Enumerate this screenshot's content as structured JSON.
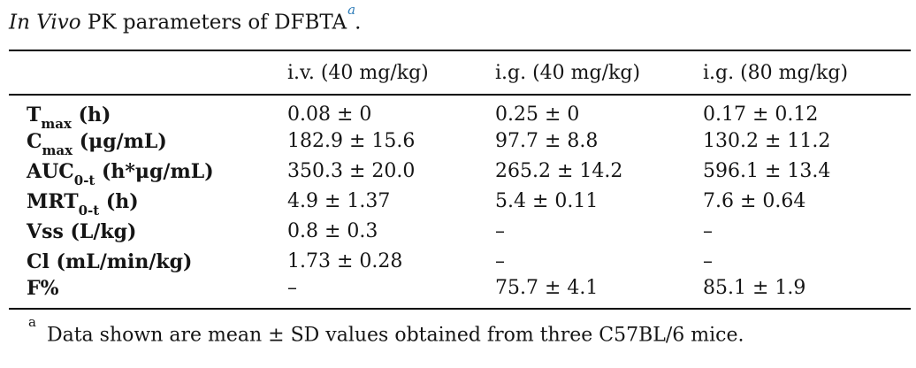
{
  "accent_color": "#2e7cb8",
  "title": {
    "italic_part": "In Vivo",
    "rest": " PK parameters of DFBTA",
    "superscript": "a",
    "period": "."
  },
  "table": {
    "columns": [
      "i.v. (40 mg/kg)",
      "i.g. (40 mg/kg)",
      "i.g. (80 mg/kg)"
    ],
    "rows": [
      {
        "label": {
          "main": "T",
          "sub": "max",
          "unit": " (h)"
        },
        "values": [
          "0.08 ± 0",
          "0.25 ± 0",
          "0.17 ± 0.12"
        ]
      },
      {
        "label": {
          "main": "C",
          "sub": "max",
          "unit": " (μg/mL)"
        },
        "values": [
          "182.9 ± 15.6",
          "97.7 ± 8.8",
          "130.2 ± 11.2"
        ]
      },
      {
        "label": {
          "main": "AUC",
          "sub": "0-t",
          "unit": " (h*μg/mL)"
        },
        "values": [
          "350.3 ± 20.0",
          "265.2 ± 14.2",
          "596.1 ± 13.4"
        ]
      },
      {
        "label": {
          "main": "MRT",
          "sub": "0-t",
          "unit": " (h)"
        },
        "values": [
          "4.9 ± 1.37",
          "5.4 ± 0.11",
          "7.6 ± 0.64"
        ]
      },
      {
        "label": {
          "main": "Vss",
          "sub": "",
          "unit": " (L/kg)"
        },
        "values": [
          "0.8 ± 0.3",
          "–",
          "–"
        ]
      },
      {
        "label": {
          "main": "Cl",
          "sub": "",
          "unit": " (mL/min/kg)"
        },
        "values": [
          "1.73 ± 0.28",
          "–",
          "–"
        ]
      },
      {
        "label": {
          "main": "F%",
          "sub": "",
          "unit": ""
        },
        "values": [
          "–",
          "75.7 ± 4.1",
          "85.1 ± 1.9"
        ]
      }
    ]
  },
  "footnote": {
    "marker": "a",
    "text": "Data shown are mean ± SD values obtained from three C57BL/6 mice."
  }
}
